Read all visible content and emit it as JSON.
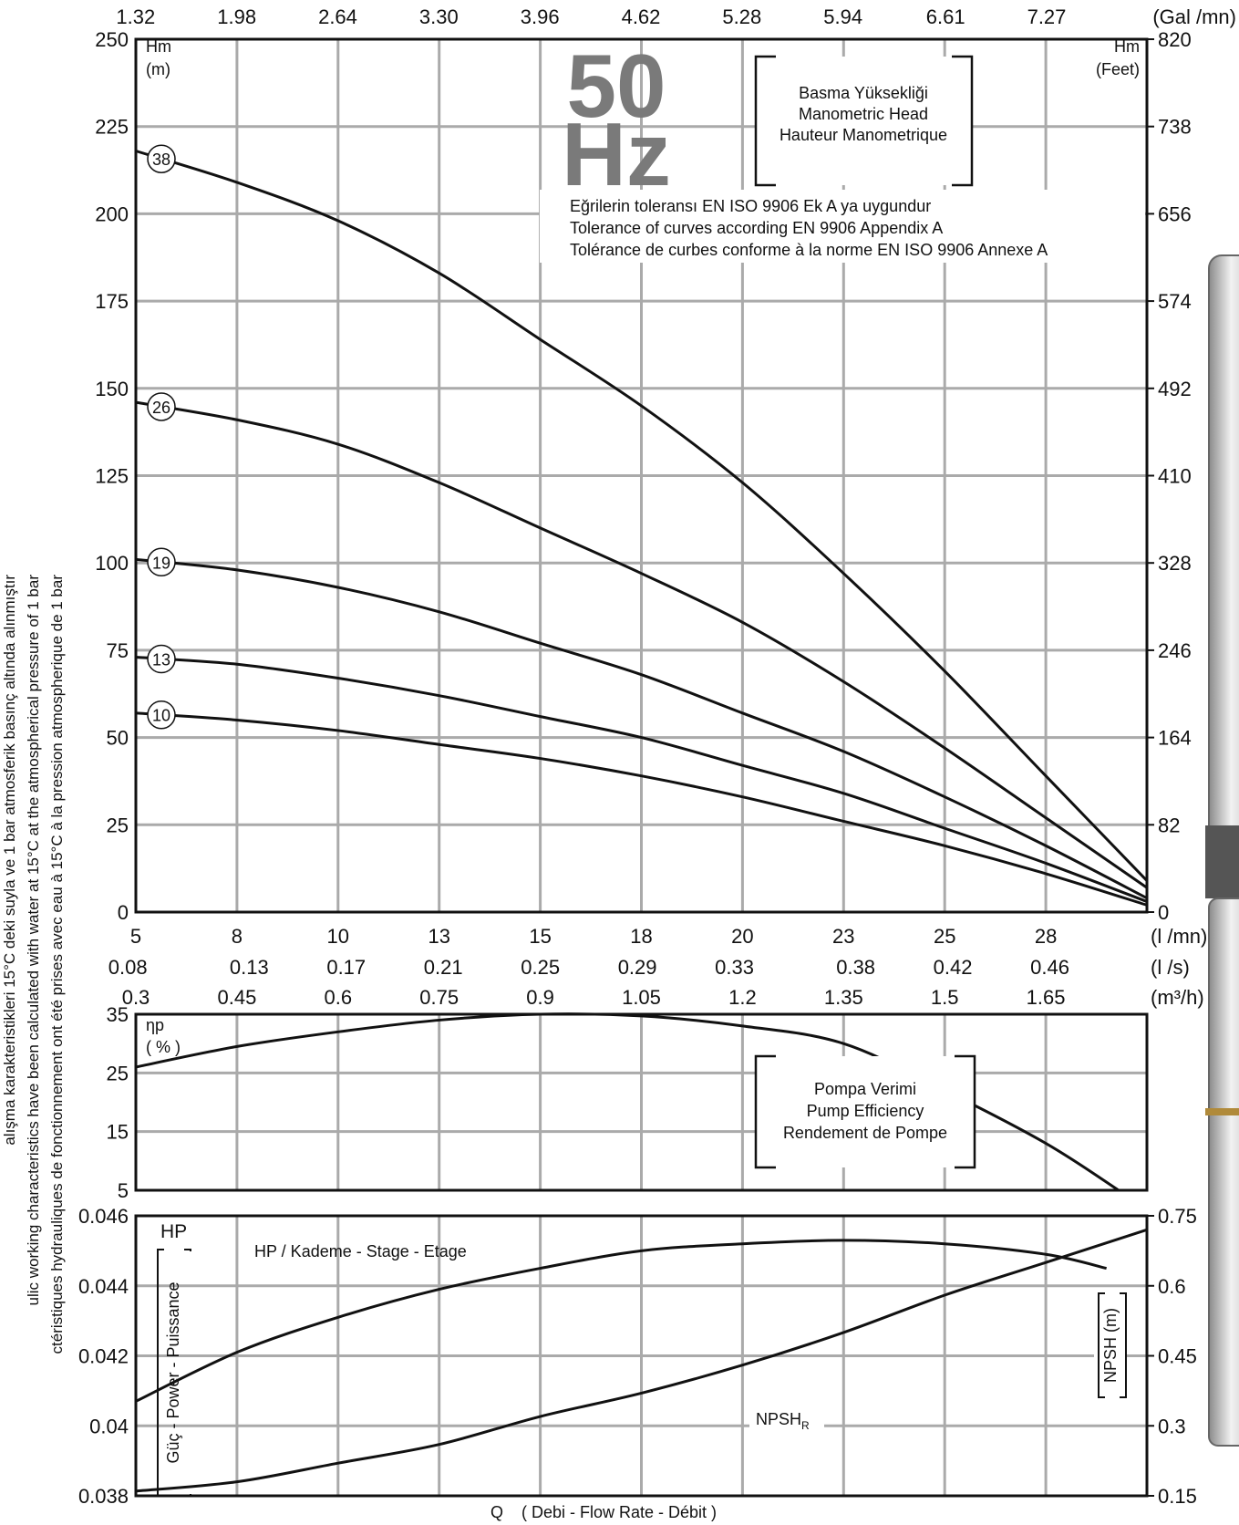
{
  "left_note": [
    "alışma karakteristikleri 15°C deki suyla ve 1 bar atmosferik basınç altında alınmıştır",
    "ulic working characteristics have been calculated with water at 15°C at the atmospherical pressure of 1 bar",
    "ctéristiques hydrauliques de fonctionnement ont été prises avec eau à 15°C à la pression atmospherique de 1 bar"
  ],
  "chart_data": [
    {
      "type": "line",
      "y_label": [
        "Hm",
        "(m)"
      ],
      "y2_label": [
        "Hm",
        "(Feet)"
      ],
      "frequency": [
        "50",
        "Hz"
      ],
      "box_lines": [
        "Basma Yüksekliği",
        "Manometric Head",
        "Hauteur Manometrique"
      ],
      "tolerance_lines": [
        "Eğrilerin toleransı EN ISO 9906 Ek A ya uygundur",
        "Tolerance of curves according EN 9906 Appendix A",
        "Tolérance de curbes conforme à la norme EN ISO 9906 Annexe A"
      ],
      "x_unit": "(l /mn)",
      "xlim": [
        5,
        30
      ],
      "xticks": [
        5,
        {
          "value": 7.5,
          "label": "8"
        },
        10,
        {
          "value": 12.5,
          "label": "13"
        },
        15,
        {
          "value": 17.5,
          "label": "18"
        },
        20,
        {
          "value": 22.5,
          "label": "23"
        },
        25,
        {
          "value": 27.5,
          "label": "28"
        }
      ],
      "x_alt_axes": [
        {
          "unit": "(Gal /mn)",
          "lim": [
            1.321,
            7.925
          ],
          "ticks": [
            1.32,
            1.98,
            2.64,
            {
              "value": 3.3,
              "label": "3.30"
            },
            3.96,
            4.62,
            5.28,
            5.94,
            6.61,
            7.27
          ]
        },
        {
          "unit": "(l /s)",
          "lim": [
            0.0833,
            0.5
          ],
          "ticks": [
            0.08,
            0.13,
            0.17,
            0.21,
            0.25,
            0.29,
            0.33,
            0.38,
            0.42,
            0.46
          ]
        },
        {
          "unit": "(m³/h)",
          "lim": [
            0.3,
            1.8
          ],
          "ticks": [
            0.3,
            0.45,
            0.6,
            0.75,
            0.9,
            1.05,
            1.2,
            1.35,
            1.5,
            1.65
          ]
        }
      ],
      "ylim": [
        0,
        250
      ],
      "yticks": [
        0,
        25,
        50,
        75,
        100,
        125,
        150,
        175,
        200,
        225,
        250
      ],
      "y2lim": [
        0,
        820
      ],
      "y2ticks": [
        0,
        82,
        164,
        246,
        328,
        410,
        492,
        574,
        656,
        738,
        820
      ],
      "grid": true,
      "x": [
        5,
        7.5,
        10,
        12.5,
        15,
        17.5,
        20,
        22.5,
        25,
        27.5,
        30
      ],
      "series": [
        {
          "name": "38",
          "color": "#111111",
          "values": [
            218,
            209,
            198,
            183,
            164,
            145,
            123,
            97,
            69,
            39,
            9
          ]
        },
        {
          "name": "26",
          "color": "#111111",
          "values": [
            146,
            141,
            134,
            123,
            110,
            97,
            83,
            66,
            47,
            27,
            7
          ]
        },
        {
          "name": "19",
          "color": "#111111",
          "values": [
            101,
            98,
            93,
            86,
            77,
            68,
            57,
            46,
            33,
            19,
            4
          ]
        },
        {
          "name": "13",
          "color": "#111111",
          "values": [
            73,
            71,
            67,
            62,
            56,
            50,
            42,
            34,
            24,
            14,
            3
          ]
        },
        {
          "name": "10",
          "color": "#111111",
          "values": [
            57,
            55,
            52,
            48,
            44,
            39,
            33,
            26,
            19,
            11,
            2
          ]
        }
      ]
    },
    {
      "type": "line",
      "y_label": [
        "ηp",
        "( % )"
      ],
      "box_lines": [
        "Pompa Verimi",
        "Pump Efficiency",
        "Rendement de Pompe"
      ],
      "xlim": [
        5,
        30
      ],
      "ylim": [
        5,
        35
      ],
      "yticks": [
        5,
        15,
        25,
        35
      ],
      "grid": true,
      "x": [
        5,
        7.5,
        10,
        12.5,
        15,
        17.5,
        20,
        22.5,
        25,
        27.5,
        29.3
      ],
      "series": [
        {
          "color": "#111111",
          "values": [
            26,
            29.5,
            32,
            34,
            35,
            34.7,
            33,
            30,
            22,
            13,
            5
          ]
        }
      ]
    },
    {
      "type": "line",
      "y_label": [
        "HP"
      ],
      "y_axis_title": "Güç - Power - Puissance",
      "y2_axis_title": "NPSH (m)",
      "x_title": [
        "Q",
        "( Debi - Flow Rate - Débit )"
      ],
      "xlim": [
        5,
        30
      ],
      "ylim": [
        0.038,
        0.046
      ],
      "yticks": [
        0.038,
        0.04,
        0.042,
        0.044,
        0.046
      ],
      "y2lim": [
        0.15,
        0.75
      ],
      "y2ticks": [
        0.15,
        0.3,
        0.45,
        0.6,
        0.75
      ],
      "grid": true,
      "series": [
        {
          "name": "HP / Kademe - Stage - Etage",
          "color": "#111111",
          "x": [
            5,
            7.5,
            10,
            12.5,
            15,
            17.5,
            20,
            22.5,
            25,
            27.5,
            29
          ],
          "values": [
            0.0407,
            0.0421,
            0.0431,
            0.0439,
            0.0445,
            0.045,
            0.0452,
            0.0453,
            0.0452,
            0.0449,
            0.0445
          ]
        },
        {
          "name": "NPSH",
          "name_sub": "R",
          "color": "#111111",
          "axis": "y2",
          "x": [
            5,
            7.5,
            10,
            12.5,
            15,
            17.5,
            20,
            22.5,
            25,
            27.5,
            30
          ],
          "values": [
            0.16,
            0.18,
            0.22,
            0.26,
            0.32,
            0.37,
            0.43,
            0.5,
            0.58,
            0.65,
            0.72
          ]
        }
      ]
    }
  ]
}
